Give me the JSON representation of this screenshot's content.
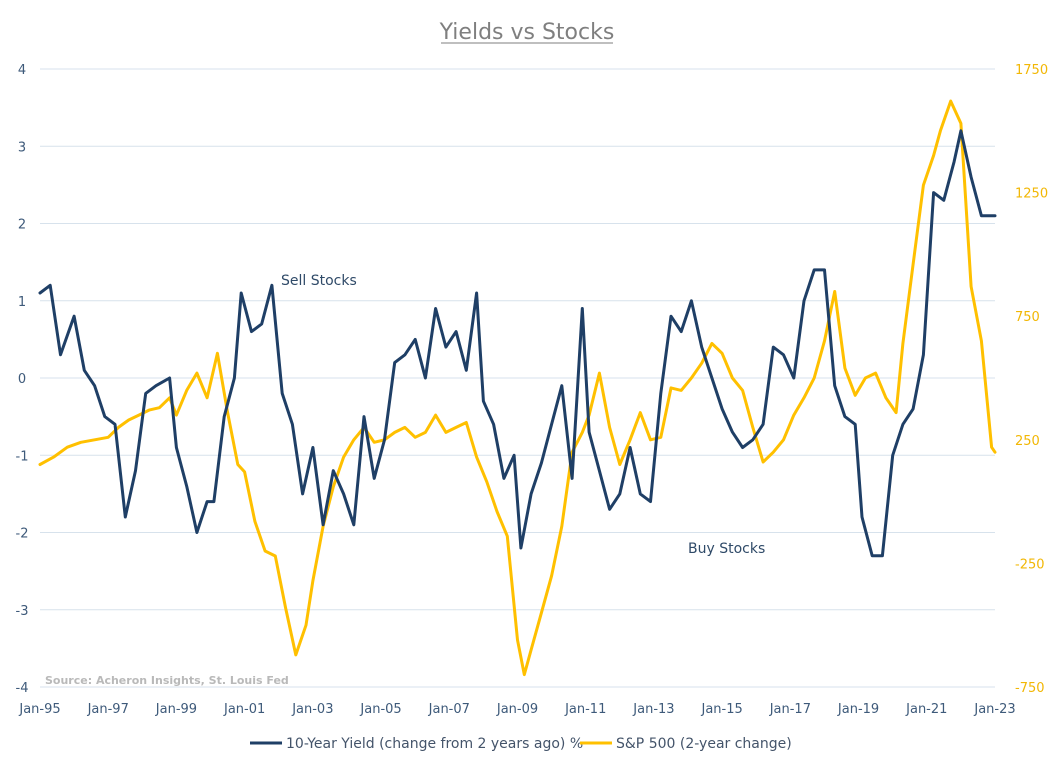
{
  "chart_data": {
    "type": "line",
    "title": "Yields vs Stocks",
    "x_tick_labels": [
      "Jan-95",
      "Jan-97",
      "Jan-99",
      "Jan-01",
      "Jan-03",
      "Jan-05",
      "Jan-07",
      "Jan-09",
      "Jan-11",
      "Jan-13",
      "Jan-15",
      "Jan-17",
      "Jan-19",
      "Jan-21",
      "Jan-23"
    ],
    "x_range": [
      1995.0,
      2023.0
    ],
    "left_axis": {
      "ylim": [
        -4,
        4
      ],
      "ticks": [
        4,
        3,
        2,
        1,
        0,
        -1,
        -2,
        -3,
        -4
      ],
      "tick_labels": [
        "4",
        "3",
        "2",
        "1",
        "0",
        "-1",
        "-2",
        "-3",
        "-4"
      ]
    },
    "right_axis": {
      "ylim": [
        -750,
        1750
      ],
      "ticks": [
        1750,
        1250,
        750,
        250,
        -250,
        -750
      ],
      "tick_labels": [
        "1750",
        "1250",
        "750",
        "250",
        "-250",
        "-750"
      ]
    },
    "grid": true,
    "legend_position": "bottom-center",
    "annotations": {
      "sell": "Sell Stocks",
      "buy": "Buy Stocks",
      "source": "Source: Acheron Insights, St. Louis Fed"
    },
    "colors": {
      "yield": "#1f3f66",
      "sp500": "#ffc000",
      "title": "#7f7f7f",
      "grid": "#d7e2ec"
    },
    "series": [
      {
        "name": "10-Year Yield (change from 2 years ago) %",
        "axis": "left",
        "x": [
          1995.0,
          1995.3,
          1995.6,
          1996.0,
          1996.3,
          1996.6,
          1996.9,
          1997.2,
          1997.5,
          1997.8,
          1998.1,
          1998.4,
          1998.8,
          1999.0,
          1999.3,
          1999.6,
          1999.9,
          2000.1,
          2000.4,
          2000.7,
          2000.9,
          2001.2,
          2001.5,
          2001.8,
          2002.1,
          2002.4,
          2002.7,
          2003.0,
          2003.3,
          2003.6,
          2003.9,
          2004.2,
          2004.5,
          2004.8,
          2005.1,
          2005.4,
          2005.7,
          2006.0,
          2006.3,
          2006.6,
          2006.9,
          2007.2,
          2007.5,
          2007.8,
          2008.0,
          2008.3,
          2008.6,
          2008.9,
          2009.1,
          2009.4,
          2009.7,
          2010.0,
          2010.3,
          2010.6,
          2010.9,
          2011.1,
          2011.4,
          2011.7,
          2012.0,
          2012.3,
          2012.6,
          2012.9,
          2013.2,
          2013.5,
          2013.8,
          2014.1,
          2014.4,
          2014.7,
          2015.0,
          2015.3,
          2015.6,
          2015.9,
          2016.2,
          2016.5,
          2016.8,
          2017.1,
          2017.4,
          2017.7,
          2018.0,
          2018.3,
          2018.6,
          2018.9,
          2019.1,
          2019.4,
          2019.7,
          2020.0,
          2020.3,
          2020.6,
          2020.9,
          2021.2,
          2021.5,
          2021.8,
          2022.0,
          2022.3,
          2022.6,
          2022.9,
          2023.0
        ],
        "values": [
          1.1,
          1.2,
          0.3,
          0.8,
          0.1,
          -0.1,
          -0.5,
          -0.6,
          -1.8,
          -1.2,
          -0.2,
          -0.1,
          0.0,
          -0.9,
          -1.4,
          -2.0,
          -1.6,
          -1.6,
          -0.5,
          0.0,
          1.1,
          0.6,
          0.7,
          1.2,
          -0.2,
          -0.6,
          -1.5,
          -0.9,
          -1.9,
          -1.2,
          -1.5,
          -1.9,
          -0.5,
          -1.3,
          -0.8,
          0.2,
          0.3,
          0.5,
          0.0,
          0.9,
          0.4,
          0.6,
          0.1,
          1.1,
          -0.3,
          -0.6,
          -1.3,
          -1.0,
          -2.2,
          -1.5,
          -1.1,
          -0.6,
          -0.1,
          -1.3,
          0.9,
          -0.7,
          -1.2,
          -1.7,
          -1.5,
          -0.9,
          -1.5,
          -1.6,
          -0.2,
          0.8,
          0.6,
          1.0,
          0.4,
          0.0,
          -0.4,
          -0.7,
          -0.9,
          -0.8,
          -0.6,
          0.4,
          0.3,
          0.0,
          1.0,
          1.4,
          1.4,
          -0.1,
          -0.5,
          -0.6,
          -1.8,
          -2.3,
          -2.3,
          -1.0,
          -0.6,
          -0.4,
          0.3,
          2.4,
          2.3,
          2.8,
          3.2,
          2.6,
          2.1,
          2.1,
          2.1
        ]
      },
      {
        "name": "S&P 500 (2-year change)",
        "axis": "right",
        "x": [
          1995.0,
          1995.4,
          1995.8,
          1996.2,
          1996.6,
          1997.0,
          1997.3,
          1997.6,
          1997.9,
          1998.2,
          1998.5,
          1998.8,
          1999.0,
          1999.3,
          1999.6,
          1999.9,
          2000.2,
          2000.5,
          2000.8,
          2001.0,
          2001.3,
          2001.6,
          2001.9,
          2002.2,
          2002.5,
          2002.8,
          2003.0,
          2003.3,
          2003.6,
          2003.9,
          2004.2,
          2004.5,
          2004.8,
          2005.1,
          2005.4,
          2005.7,
          2006.0,
          2006.3,
          2006.6,
          2006.9,
          2007.2,
          2007.5,
          2007.8,
          2008.1,
          2008.4,
          2008.7,
          2009.0,
          2009.2,
          2009.4,
          2009.7,
          2010.0,
          2010.3,
          2010.6,
          2010.9,
          2011.1,
          2011.4,
          2011.7,
          2012.0,
          2012.3,
          2012.6,
          2012.9,
          2013.2,
          2013.5,
          2013.8,
          2014.1,
          2014.4,
          2014.7,
          2015.0,
          2015.3,
          2015.6,
          2015.9,
          2016.2,
          2016.5,
          2016.8,
          2017.1,
          2017.4,
          2017.7,
          2018.0,
          2018.3,
          2018.6,
          2018.9,
          2019.2,
          2019.5,
          2019.8,
          2020.1,
          2020.3,
          2020.6,
          2020.9,
          2021.2,
          2021.4,
          2021.7,
          2022.0,
          2022.3,
          2022.6,
          2022.9,
          2023.0
        ],
        "values": [
          150,
          180,
          220,
          240,
          250,
          260,
          300,
          330,
          350,
          370,
          380,
          420,
          350,
          450,
          520,
          420,
          600,
          360,
          150,
          120,
          -80,
          -200,
          -220,
          -430,
          -620,
          -500,
          -320,
          -100,
          60,
          180,
          250,
          300,
          240,
          250,
          280,
          300,
          260,
          280,
          350,
          280,
          300,
          320,
          180,
          80,
          -40,
          -140,
          -560,
          -700,
          -600,
          -450,
          -300,
          -100,
          200,
          280,
          350,
          520,
          300,
          150,
          250,
          360,
          250,
          260,
          460,
          450,
          500,
          560,
          640,
          600,
          500,
          450,
          300,
          160,
          200,
          250,
          350,
          420,
          500,
          650,
          850,
          540,
          430,
          500,
          520,
          420,
          360,
          640,
          960,
          1280,
          1400,
          1500,
          1620,
          1530,
          870,
          650,
          220,
          200
        ]
      }
    ]
  },
  "legend": {
    "items": [
      {
        "label": "10-Year Yield (change from 2 years ago) %"
      },
      {
        "label": "S&P 500 (2-year change)"
      }
    ]
  }
}
